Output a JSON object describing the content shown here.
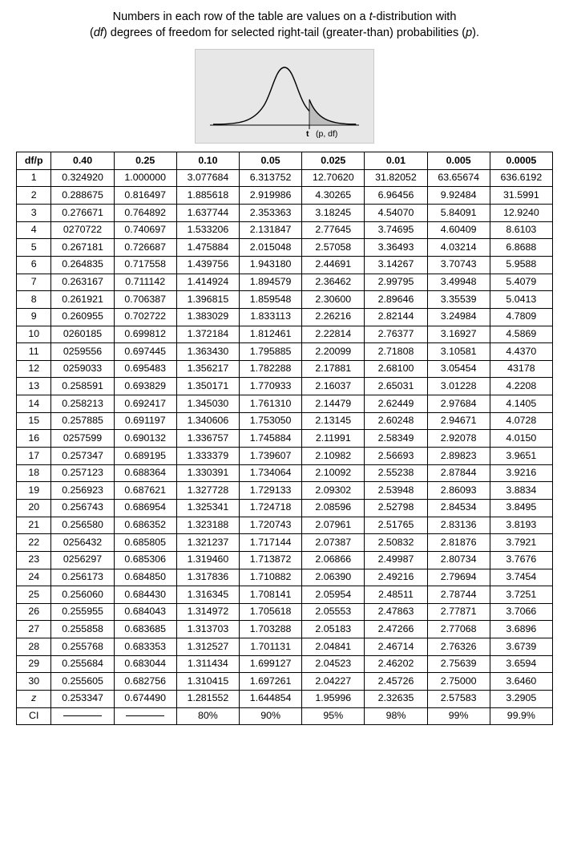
{
  "caption_line1_a": "Numbers in each row of the table are values on a ",
  "caption_line1_b": "t",
  "caption_line1_c": "-distribution with",
  "caption_line2_a": "(",
  "caption_line2_b": "df",
  "caption_line2_c": ") degrees of freedom for selected right-tail (greater-than) probabilities (",
  "caption_line2_d": "p",
  "caption_line2_e": ").",
  "fig_t": "t",
  "fig_paren": "(p, df)",
  "corner": "df/p",
  "p_headers": [
    "0.40",
    "0.25",
    "0.10",
    "0.05",
    "0.025",
    "0.01",
    "0.005",
    "0.0005"
  ],
  "rows": [
    {
      "h": "1",
      "v": [
        "0.324920",
        "1.000000",
        "3.077684",
        "6.313752",
        "12.70620",
        "31.82052",
        "63.65674",
        "636.6192"
      ]
    },
    {
      "h": "2",
      "v": [
        "0.288675",
        "0.816497",
        "1.885618",
        "2.919986",
        "4.30265",
        "6.96456",
        "9.92484",
        "31.5991"
      ]
    },
    {
      "h": "3",
      "v": [
        "0.276671",
        "0.764892",
        "1.637744",
        "2.353363",
        "3.18245",
        "4.54070",
        "5.84091",
        "12.9240"
      ]
    },
    {
      "h": "4",
      "v": [
        "0270722",
        "0.740697",
        "1.533206",
        "2.131847",
        "2.77645",
        "3.74695",
        "4.60409",
        "8.6103"
      ]
    },
    {
      "h": "5",
      "v": [
        "0.267181",
        "0.726687",
        "1.475884",
        "2.015048",
        "2.57058",
        "3.36493",
        "4.03214",
        "6.8688"
      ]
    },
    {
      "h": "6",
      "v": [
        "0.264835",
        "0.717558",
        "1.439756",
        "1.943180",
        "2.44691",
        "3.14267",
        "3.70743",
        "5.9588"
      ]
    },
    {
      "h": "7",
      "v": [
        "0.263167",
        "0.711142",
        "1.414924",
        "1.894579",
        "2.36462",
        "2.99795",
        "3.49948",
        "5.4079"
      ]
    },
    {
      "h": "8",
      "v": [
        "0.261921",
        "0.706387",
        "1.396815",
        "1.859548",
        "2.30600",
        "2.89646",
        "3.35539",
        "5.0413"
      ]
    },
    {
      "h": "9",
      "v": [
        "0.260955",
        "0.702722",
        "1.383029",
        "1.833113",
        "2.26216",
        "2.82144",
        "3.24984",
        "4.7809"
      ]
    },
    {
      "h": "10",
      "v": [
        "0260185",
        "0.699812",
        "1.372184",
        "1.812461",
        "2.22814",
        "2.76377",
        "3.16927",
        "4.5869"
      ]
    },
    {
      "h": "11",
      "v": [
        "0259556",
        "0.697445",
        "1.363430",
        "1.795885",
        "2.20099",
        "2.71808",
        "3.10581",
        "4.4370"
      ]
    },
    {
      "h": "12",
      "v": [
        "0259033",
        "0.695483",
        "1.356217",
        "1.782288",
        "2.17881",
        "2.68100",
        "3.05454",
        "43178"
      ]
    },
    {
      "h": "13",
      "v": [
        "0.258591",
        "0.693829",
        "1.350171",
        "1.770933",
        "2.16037",
        "2.65031",
        "3.01228",
        "4.2208"
      ]
    },
    {
      "h": "14",
      "v": [
        "0.258213",
        "0.692417",
        "1.345030",
        "1.761310",
        "2.14479",
        "2.62449",
        "2.97684",
        "4.1405"
      ]
    },
    {
      "h": "15",
      "v": [
        "0.257885",
        "0.691197",
        "1.340606",
        "1.753050",
        "2.13145",
        "2.60248",
        "2.94671",
        "4.0728"
      ]
    },
    {
      "h": "16",
      "v": [
        "0257599",
        "0.690132",
        "1.336757",
        "1.745884",
        "2.11991",
        "2.58349",
        "2.92078",
        "4.0150"
      ]
    },
    {
      "h": "17",
      "v": [
        "0.257347",
        "0.689195",
        "1.333379",
        "1.739607",
        "2.10982",
        "2.56693",
        "2.89823",
        "3.9651"
      ]
    },
    {
      "h": "18",
      "v": [
        "0.257123",
        "0.688364",
        "1.330391",
        "1.734064",
        "2.10092",
        "2.55238",
        "2.87844",
        "3.9216"
      ]
    },
    {
      "h": "19",
      "v": [
        "0.256923",
        "0.687621",
        "1.327728",
        "1.729133",
        "2.09302",
        "2.53948",
        "2.86093",
        "3.8834"
      ]
    },
    {
      "h": "20",
      "v": [
        "0.256743",
        "0.686954",
        "1.325341",
        "1.724718",
        "2.08596",
        "2.52798",
        "2.84534",
        "3.8495"
      ]
    },
    {
      "h": "21",
      "v": [
        "0.256580",
        "0.686352",
        "1.323188",
        "1.720743",
        "2.07961",
        "2.51765",
        "2.83136",
        "3.8193"
      ]
    },
    {
      "h": "22",
      "v": [
        "0256432",
        "0.685805",
        "1.321237",
        "1.717144",
        "2.07387",
        "2.50832",
        "2.81876",
        "3.7921"
      ]
    },
    {
      "h": "23",
      "v": [
        "0256297",
        "0.685306",
        "1.319460",
        "1.713872",
        "2.06866",
        "2.49987",
        "2.80734",
        "3.7676"
      ]
    },
    {
      "h": "24",
      "v": [
        "0.256173",
        "0.684850",
        "1.317836",
        "1.710882",
        "2.06390",
        "2.49216",
        "2.79694",
        "3.7454"
      ]
    },
    {
      "h": "25",
      "v": [
        "0.256060",
        "0.684430",
        "1.316345",
        "1.708141",
        "2.05954",
        "2.48511",
        "2.78744",
        "3.7251"
      ]
    },
    {
      "h": "26",
      "v": [
        "0.255955",
        "0.684043",
        "1.314972",
        "1.705618",
        "2.05553",
        "2.47863",
        "2.77871",
        "3.7066"
      ]
    },
    {
      "h": "27",
      "v": [
        "0.255858",
        "0.683685",
        "1.313703",
        "1.703288",
        "2.05183",
        "2.47266",
        "2.77068",
        "3.6896"
      ]
    },
    {
      "h": "28",
      "v": [
        "0.255768",
        "0.683353",
        "1.312527",
        "1.701131",
        "2.04841",
        "2.46714",
        "2.76326",
        "3.6739"
      ]
    },
    {
      "h": "29",
      "v": [
        "0.255684",
        "0.683044",
        "1.311434",
        "1.699127",
        "2.04523",
        "2.46202",
        "2.75639",
        "3.6594"
      ]
    },
    {
      "h": "30",
      "v": [
        "0.255605",
        "0.682756",
        "1.310415",
        "1.697261",
        "2.04227",
        "2.45726",
        "2.75000",
        "3.6460"
      ]
    }
  ],
  "z_row": {
    "h": "z",
    "v": [
      "0.253347",
      "0.674490",
      "1.281552",
      "1.644854",
      "1.95996",
      "2.32635",
      "2.57583",
      "3.2905"
    ]
  },
  "ci_row": {
    "h": "CI",
    "v": [
      "—",
      "—",
      "80%",
      "90%",
      "95%",
      "98%",
      "99%",
      "99.9%"
    ]
  }
}
